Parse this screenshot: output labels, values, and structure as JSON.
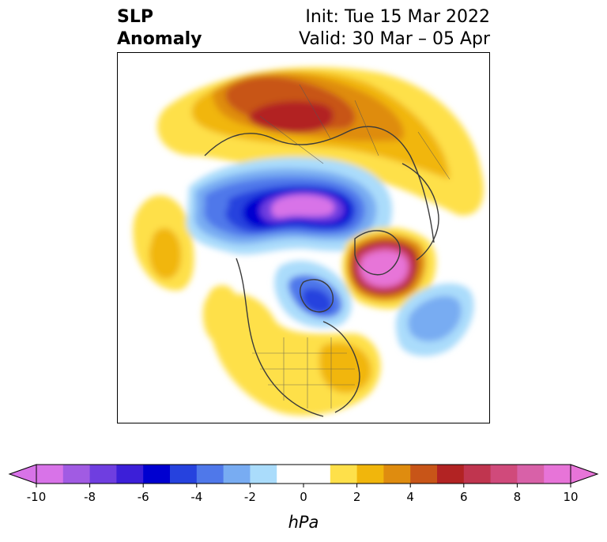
{
  "header": {
    "left_line1": "SLP",
    "left_line2": "Anomaly",
    "right_line1": "Init: Tue 15 Mar 2022",
    "right_line2": "Valid: 30 Mar – 05 Apr"
  },
  "colorbar": {
    "unit": "hPa",
    "tick_labels": [
      "-10",
      "-8",
      "-6",
      "-4",
      "-2",
      "0",
      "2",
      "4",
      "6",
      "8",
      "10"
    ],
    "colors": [
      "#d873e8",
      "#a15be3",
      "#6f3ee0",
      "#3c1fd8",
      "#0000d0",
      "#2642de",
      "#4f78ea",
      "#78acf2",
      "#aadcfb",
      "#ffffff",
      "#ffffff",
      "#fee04a",
      "#f1b60c",
      "#df8c0f",
      "#c85518",
      "#b22323",
      "#c0354f",
      "#d04a7b",
      "#d861a8",
      "#e774d8"
    ]
  }
}
